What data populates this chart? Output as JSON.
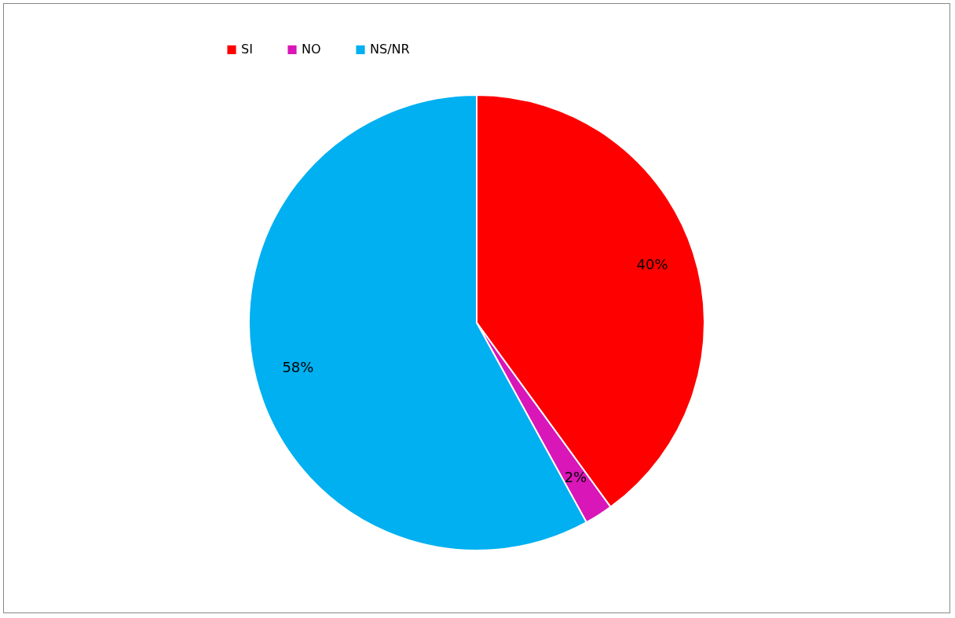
{
  "chart_data": {
    "type": "pie",
    "categories": [
      "SI",
      "NO",
      "NS/NR"
    ],
    "values": [
      40,
      2,
      58
    ],
    "colors": [
      "#ff0000",
      "#d916b8",
      "#00b0f0"
    ],
    "value_labels": [
      "40%",
      "2%",
      "58%"
    ],
    "legend": "top"
  }
}
